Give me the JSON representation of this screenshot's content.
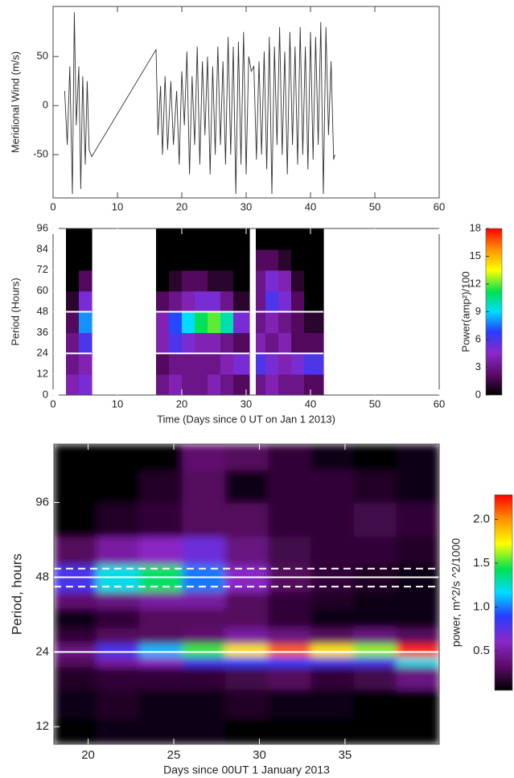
{
  "chart_data": [
    {
      "type": "line",
      "ylabel": "Meridional Wind (m/s)",
      "x": [
        1.8,
        2.2,
        2.6,
        3.0,
        3.3,
        3.6,
        4.0,
        4.3,
        4.6,
        5.0,
        5.3,
        5.6,
        6.0,
        16.0,
        16.3,
        16.7,
        17.0,
        17.4,
        17.8,
        18.3,
        18.7,
        19.2,
        19.6,
        20.0,
        20.4,
        20.8,
        21.2,
        21.6,
        22.0,
        22.4,
        22.8,
        23.2,
        23.6,
        24.0,
        24.4,
        24.8,
        25.2,
        25.6,
        26.0,
        26.4,
        26.8,
        27.2,
        27.6,
        28.0,
        28.4,
        28.8,
        29.2,
        29.6,
        30.0,
        30.4,
        30.8,
        31.2,
        31.6,
        32.0,
        32.4,
        32.8,
        33.2,
        33.6,
        34.0,
        34.4,
        34.8,
        35.2,
        35.6,
        36.0,
        36.4,
        36.8,
        37.2,
        37.6,
        38.0,
        38.4,
        38.8,
        39.2,
        39.6,
        40.0,
        40.4,
        40.8,
        41.2,
        41.6,
        42.0,
        42.4,
        42.8,
        43.2,
        43.6,
        43.8
      ],
      "series": [
        {
          "color": "#333333",
          "values": [
            15,
            -40,
            40,
            -90,
            95,
            -20,
            40,
            -85,
            30,
            -60,
            25,
            -45,
            -52,
            57,
            -30,
            20,
            -50,
            30,
            -45,
            25,
            -40,
            15,
            -60,
            35,
            -20,
            55,
            -70,
            30,
            -40,
            60,
            -60,
            45,
            -30,
            50,
            -70,
            40,
            -50,
            60,
            -40,
            45,
            -60,
            70,
            -50,
            60,
            -90,
            65,
            -60,
            75,
            -70,
            50,
            35,
            40,
            -55,
            45,
            -50,
            55,
            -65,
            70,
            -90,
            60,
            -40,
            80,
            -50,
            55,
            -70,
            75,
            -40,
            60,
            -60,
            80,
            -50,
            60,
            -65,
            75,
            -55,
            70,
            -40,
            85,
            -90,
            80,
            -30,
            45,
            -55,
            -50
          ]
        }
      ],
      "xlim": [
        0,
        60
      ],
      "xticks": [
        0,
        10,
        20,
        30,
        40,
        50,
        60
      ],
      "ylim": [
        -94,
        101
      ],
      "yticks": [
        -50,
        0,
        50
      ]
    },
    {
      "type": "heatmap",
      "xlabel": "Time (Days since 0 UT on Jan 1 2013)",
      "ylabel": "Period (Hours)",
      "x_edges": [
        2,
        4,
        6,
        16,
        18,
        20,
        22,
        24,
        26,
        28,
        30.5,
        31.5,
        33,
        35,
        37,
        39,
        42
      ],
      "y_edges": [
        0,
        12,
        24,
        36,
        48,
        60,
        72,
        84,
        96
      ],
      "values": [
        [
          4,
          5,
          null,
          3,
          4,
          3,
          3,
          4,
          3,
          2,
          null,
          3,
          4,
          3,
          3,
          2
        ],
        [
          3,
          4,
          null,
          2,
          3,
          3,
          3,
          3,
          4,
          5,
          null,
          6,
          5,
          4,
          5,
          6
        ],
        [
          3,
          6,
          null,
          4,
          6,
          5,
          4,
          4,
          3,
          2,
          null,
          4,
          3,
          4,
          2,
          2
        ],
        [
          2,
          8,
          null,
          4,
          7,
          9,
          11,
          12,
          10,
          5,
          null,
          3,
          4,
          3,
          2,
          1
        ],
        [
          1,
          5,
          null,
          2,
          3,
          4,
          5,
          5,
          3,
          1,
          null,
          3,
          6,
          5,
          2,
          0
        ],
        [
          0,
          2,
          null,
          0,
          1,
          2,
          2,
          1,
          1,
          0,
          null,
          3,
          5,
          4,
          1,
          0
        ],
        [
          0,
          0,
          null,
          0,
          0,
          0,
          0,
          0,
          0,
          0,
          null,
          2,
          2,
          1,
          0,
          0
        ],
        [
          0,
          0,
          null,
          0,
          0,
          0,
          0,
          0,
          0,
          0,
          null,
          0,
          0,
          0,
          0,
          0
        ]
      ],
      "xlim": [
        0,
        60
      ],
      "xticks": [
        0,
        10,
        20,
        30,
        40,
        50,
        60
      ],
      "ylim": [
        0,
        96
      ],
      "yticks": [
        0,
        12,
        24,
        36,
        48,
        60,
        72,
        84,
        96
      ],
      "hlines": [
        24,
        48
      ],
      "hline_color": "#ffffff",
      "colorbar": {
        "label": "Power(amp²)/100",
        "lim": [
          0,
          18
        ],
        "ticks": [
          0,
          3,
          6,
          9,
          12,
          15,
          18
        ]
      }
    },
    {
      "type": "heatmap",
      "yscale": "log",
      "xlabel": "Days since 00UT 1 January 2013",
      "ylabel": "Period, hours",
      "x_edges": [
        18,
        20.5,
        23,
        25.5,
        28,
        30.5,
        33,
        35.5,
        38,
        40.5
      ],
      "y_edges": [
        10.2,
        13,
        17,
        21,
        23,
        26,
        30,
        36,
        42,
        54,
        70,
        96,
        130,
        165
      ],
      "values": [
        [
          0,
          0.1,
          0.1,
          0.1,
          0,
          0,
          0,
          0,
          0
        ],
        [
          0.1,
          0.15,
          0.1,
          0.1,
          0.15,
          0.1,
          0.1,
          0,
          0
        ],
        [
          0.15,
          0.2,
          0.2,
          0.2,
          0.25,
          0.3,
          0.2,
          0.25,
          0.4
        ],
        [
          0.3,
          0.5,
          0.6,
          0.8,
          0.9,
          0.9,
          0.8,
          0.8,
          1.2
        ],
        [
          0.4,
          0.8,
          1.1,
          1.5,
          1.8,
          2.1,
          1.8,
          1.6,
          2.2
        ],
        [
          0.2,
          0.3,
          0.3,
          0.35,
          0.5,
          0.4,
          0.3,
          0.4,
          0.3
        ],
        [
          0.1,
          0.2,
          0.3,
          0.3,
          0.3,
          0.2,
          0.1,
          0.1,
          0.1
        ],
        [
          0.35,
          0.4,
          0.5,
          0.5,
          0.3,
          0.2,
          0.15,
          0.1,
          0.1
        ],
        [
          0.8,
          1.2,
          1.4,
          1.0,
          0.6,
          0.3,
          0.2,
          0.15,
          0.1
        ],
        [
          0.3,
          0.5,
          0.6,
          0.7,
          0.4,
          0.25,
          0.2,
          0.2,
          0.15
        ],
        [
          0,
          0.15,
          0.2,
          0.3,
          0.3,
          0.2,
          0.2,
          0.25,
          0.2
        ],
        [
          0,
          0,
          0.15,
          0.3,
          0.1,
          0.2,
          0.2,
          0.15,
          0.1
        ],
        [
          0,
          0,
          0,
          0.35,
          0.3,
          0.2,
          0.1,
          0,
          0.1
        ]
      ],
      "xlim": [
        18,
        40.5
      ],
      "xticks": [
        20,
        25,
        30,
        35
      ],
      "ylim": [
        10.2,
        165
      ],
      "yticks": [
        12,
        24,
        48,
        96
      ],
      "hlines": [
        24,
        48
      ],
      "dashed_hlines": [
        44,
        52
      ],
      "hline_color": "#ffffff",
      "colorbar": {
        "label": "power, m^2/s ^2/1000",
        "lim": [
          0.05,
          2.28
        ],
        "ticks": [
          0.5,
          {
            "value": 1,
            "label": "1.0"
          },
          1.5,
          {
            "value": 2,
            "label": "2.0"
          }
        ]
      }
    }
  ]
}
